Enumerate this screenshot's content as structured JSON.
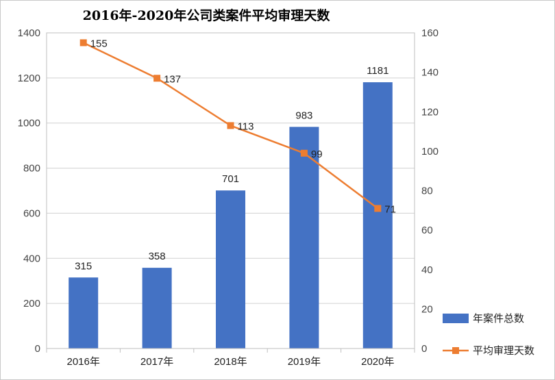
{
  "chart_data": {
    "type": "bar+line",
    "title": "2016年-2020年公司类案件平均审理天数",
    "categories": [
      "2016年",
      "2017年",
      "2018年",
      "2019年",
      "2020年"
    ],
    "series": [
      {
        "name": "年案件总数",
        "type": "bar",
        "axis": "left",
        "color": "#4472C4",
        "values": [
          315,
          358,
          701,
          983,
          1181
        ]
      },
      {
        "name": "平均审理天数",
        "type": "line",
        "axis": "right",
        "color": "#ED7D31",
        "values": [
          155,
          137,
          113,
          99,
          71
        ]
      }
    ],
    "left_axis": {
      "min": 0,
      "max": 1400,
      "ticks": [
        0,
        200,
        400,
        600,
        800,
        1000,
        1200,
        1400
      ]
    },
    "right_axis": {
      "min": 0,
      "max": 160,
      "ticks": [
        0,
        20,
        40,
        60,
        80,
        100,
        120,
        140,
        160
      ]
    },
    "grid": true,
    "legend_position": "right"
  }
}
